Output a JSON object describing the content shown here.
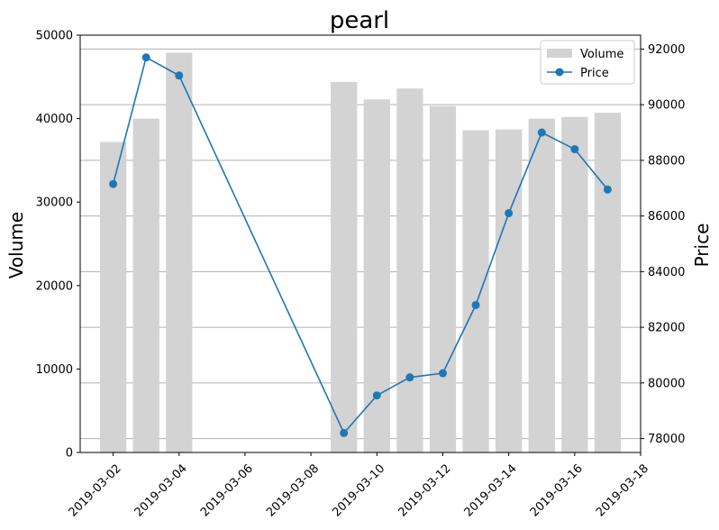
{
  "chart_data": {
    "type": "bar",
    "title": "pearl",
    "ylabel": "Volume",
    "y2label": "Price",
    "dates": [
      "2019-03-02",
      "2019-03-03",
      "2019-03-04",
      "2019-03-09",
      "2019-03-10",
      "2019-03-11",
      "2019-03-12",
      "2019-03-13",
      "2019-03-14",
      "2019-03-15",
      "2019-03-16",
      "2019-03-17"
    ],
    "series": [
      {
        "name": "Volume",
        "type": "bar",
        "axis": "left",
        "values": [
          37200,
          40000,
          47900,
          44400,
          42300,
          43600,
          41500,
          38600,
          38700,
          40000,
          40200,
          40700
        ]
      },
      {
        "name": "Price",
        "type": "line",
        "axis": "right",
        "values": [
          87150,
          91700,
          91050,
          78200,
          79550,
          80200,
          80350,
          82800,
          86100,
          89000,
          88400,
          86950
        ]
      }
    ],
    "xlim": [
      "2019-03-01",
      "2019-03-18"
    ],
    "xticks": [
      "2019-03-02",
      "2019-03-04",
      "2019-03-06",
      "2019-03-08",
      "2019-03-10",
      "2019-03-12",
      "2019-03-14",
      "2019-03-16",
      "2019-03-18"
    ],
    "ylim": [
      0,
      50000
    ],
    "yticks": [
      "0",
      "10000",
      "20000",
      "30000",
      "40000",
      "50000"
    ],
    "y2lim": [
      77500,
      92500
    ],
    "y2ticks": [
      "78000",
      "80000",
      "82000",
      "84000",
      "86000",
      "88000",
      "90000",
      "92000"
    ],
    "grid": "horizontal, right axis",
    "legend_position": "top-right",
    "colors": {
      "bar": "#d3d3d3",
      "line": "#1f77b4",
      "grid": "#b0b0b0"
    }
  }
}
